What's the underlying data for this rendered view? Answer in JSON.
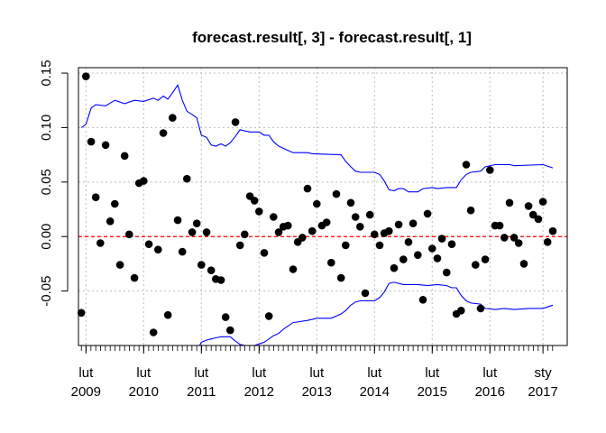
{
  "chart_data": {
    "type": "scatter",
    "title": "forecast.result[, 3] - forecast.result[, 1]",
    "xlabel": "",
    "ylabel": "",
    "grid": true,
    "ylim": [
      -0.1,
      0.155
    ],
    "xlim": [
      2008.95,
      2017.42
    ],
    "y_ticks": [
      {
        "value": -0.05,
        "label": "-0.05"
      },
      {
        "value": 0.0,
        "label": "0.00"
      },
      {
        "value": 0.05,
        "label": "0.05"
      },
      {
        "value": 0.1,
        "label": "0.10"
      },
      {
        "value": 0.15,
        "label": "0.15"
      }
    ],
    "x_ticks": [
      {
        "value": 2009.08,
        "line1": "lut",
        "line2": "2009"
      },
      {
        "value": 2010.08,
        "line1": "lut",
        "line2": "2010"
      },
      {
        "value": 2011.08,
        "line1": "lut",
        "line2": "2011"
      },
      {
        "value": 2012.08,
        "line1": "lut",
        "line2": "2012"
      },
      {
        "value": 2013.08,
        "line1": "lut",
        "line2": "2013"
      },
      {
        "value": 2014.08,
        "line1": "lut",
        "line2": "2014"
      },
      {
        "value": 2015.08,
        "line1": "lut",
        "line2": "2015"
      },
      {
        "value": 2016.08,
        "line1": "lut",
        "line2": "2016"
      },
      {
        "value": 2017.0,
        "line1": "sty",
        "line2": "2017"
      }
    ],
    "reference_line": {
      "y": 0,
      "color": "#ff0000",
      "style": "dashed"
    },
    "colors": {
      "points": "#000000",
      "bands": "#0000ff",
      "grid": "#bebebe",
      "reference": "#ff0000"
    },
    "points": [
      [
        2009.0,
        -0.07
      ],
      [
        2009.08,
        0.147
      ],
      [
        2009.17,
        0.087
      ],
      [
        2009.25,
        0.036
      ],
      [
        2009.33,
        -0.006
      ],
      [
        2009.42,
        0.084
      ],
      [
        2009.5,
        0.014
      ],
      [
        2009.58,
        0.03
      ],
      [
        2009.67,
        -0.026
      ],
      [
        2009.75,
        0.074
      ],
      [
        2009.83,
        0.002
      ],
      [
        2009.92,
        -0.038
      ],
      [
        2010.0,
        0.049
      ],
      [
        2010.08,
        0.051
      ],
      [
        2010.17,
        -0.007
      ],
      [
        2010.25,
        -0.088
      ],
      [
        2010.33,
        -0.012
      ],
      [
        2010.42,
        0.095
      ],
      [
        2010.5,
        -0.072
      ],
      [
        2010.58,
        0.109
      ],
      [
        2010.67,
        0.015
      ],
      [
        2010.75,
        -0.014
      ],
      [
        2010.83,
        0.053
      ],
      [
        2010.92,
        0.004
      ],
      [
        2011.0,
        0.012
      ],
      [
        2011.08,
        -0.026
      ],
      [
        2011.17,
        0.004
      ],
      [
        2011.25,
        -0.031
      ],
      [
        2011.33,
        -0.039
      ],
      [
        2011.42,
        -0.04
      ],
      [
        2011.5,
        -0.074
      ],
      [
        2011.58,
        -0.086
      ],
      [
        2011.67,
        0.105
      ],
      [
        2011.75,
        -0.008
      ],
      [
        2011.83,
        0.002
      ],
      [
        2011.92,
        0.037
      ],
      [
        2012.0,
        0.033
      ],
      [
        2012.08,
        0.023
      ],
      [
        2012.17,
        -0.015
      ],
      [
        2012.25,
        -0.073
      ],
      [
        2012.33,
        0.018
      ],
      [
        2012.42,
        0.004
      ],
      [
        2012.5,
        0.009
      ],
      [
        2012.58,
        0.01
      ],
      [
        2012.67,
        -0.03
      ],
      [
        2012.75,
        -0.005
      ],
      [
        2012.83,
        -0.001
      ],
      [
        2012.92,
        0.044
      ],
      [
        2013.0,
        0.005
      ],
      [
        2013.08,
        0.03
      ],
      [
        2013.17,
        0.01
      ],
      [
        2013.25,
        0.013
      ],
      [
        2013.33,
        -0.024
      ],
      [
        2013.42,
        0.039
      ],
      [
        2013.5,
        -0.038
      ],
      [
        2013.58,
        -0.008
      ],
      [
        2013.67,
        0.031
      ],
      [
        2013.75,
        0.018
      ],
      [
        2013.83,
        0.009
      ],
      [
        2013.92,
        -0.052
      ],
      [
        2014.0,
        0.02
      ],
      [
        2014.08,
        0.002
      ],
      [
        2014.17,
        -0.008
      ],
      [
        2014.25,
        0.003
      ],
      [
        2014.33,
        0.005
      ],
      [
        2014.42,
        -0.029
      ],
      [
        2014.5,
        0.011
      ],
      [
        2014.58,
        -0.021
      ],
      [
        2014.67,
        -0.005
      ],
      [
        2014.75,
        0.012
      ],
      [
        2014.83,
        -0.017
      ],
      [
        2014.92,
        -0.058
      ],
      [
        2015.0,
        0.021
      ],
      [
        2015.08,
        -0.011
      ],
      [
        2015.17,
        -0.02
      ],
      [
        2015.25,
        -0.002
      ],
      [
        2015.33,
        -0.033
      ],
      [
        2015.42,
        -0.007
      ],
      [
        2015.5,
        -0.071
      ],
      [
        2015.58,
        -0.068
      ],
      [
        2015.67,
        0.066
      ],
      [
        2015.75,
        0.024
      ],
      [
        2015.83,
        -0.026
      ],
      [
        2015.92,
        -0.066
      ],
      [
        2016.0,
        -0.021
      ],
      [
        2016.08,
        0.061
      ],
      [
        2016.17,
        0.01
      ],
      [
        2016.25,
        0.01
      ],
      [
        2016.33,
        -0.001
      ],
      [
        2016.42,
        0.031
      ],
      [
        2016.5,
        -0.001
      ],
      [
        2016.58,
        -0.006
      ],
      [
        2016.67,
        -0.025
      ],
      [
        2016.75,
        0.028
      ],
      [
        2016.83,
        0.02
      ],
      [
        2016.92,
        0.016
      ],
      [
        2017.0,
        0.032
      ],
      [
        2017.08,
        -0.005
      ],
      [
        2017.17,
        0.005
      ]
    ],
    "upper_band": [
      [
        2009.0,
        0.1
      ],
      [
        2009.08,
        0.103
      ],
      [
        2009.17,
        0.118
      ],
      [
        2009.25,
        0.121
      ],
      [
        2009.42,
        0.12
      ],
      [
        2009.58,
        0.125
      ],
      [
        2009.75,
        0.122
      ],
      [
        2009.92,
        0.125
      ],
      [
        2010.08,
        0.124
      ],
      [
        2010.25,
        0.127
      ],
      [
        2010.33,
        0.125
      ],
      [
        2010.42,
        0.129
      ],
      [
        2010.5,
        0.126
      ],
      [
        2010.58,
        0.132
      ],
      [
        2010.67,
        0.139
      ],
      [
        2010.75,
        0.125
      ],
      [
        2010.83,
        0.115
      ],
      [
        2010.92,
        0.112
      ],
      [
        2011.0,
        0.109
      ],
      [
        2011.08,
        0.093
      ],
      [
        2011.17,
        0.091
      ],
      [
        2011.25,
        0.084
      ],
      [
        2011.33,
        0.083
      ],
      [
        2011.42,
        0.085
      ],
      [
        2011.5,
        0.083
      ],
      [
        2011.58,
        0.086
      ],
      [
        2011.67,
        0.092
      ],
      [
        2011.75,
        0.098
      ],
      [
        2011.83,
        0.097
      ],
      [
        2011.92,
        0.096
      ],
      [
        2012.08,
        0.096
      ],
      [
        2012.17,
        0.093
      ],
      [
        2012.25,
        0.093
      ],
      [
        2012.33,
        0.087
      ],
      [
        2012.42,
        0.083
      ],
      [
        2012.5,
        0.081
      ],
      [
        2012.58,
        0.079
      ],
      [
        2012.67,
        0.077
      ],
      [
        2012.92,
        0.077
      ],
      [
        2013.0,
        0.076
      ],
      [
        2013.5,
        0.075
      ],
      [
        2013.58,
        0.069
      ],
      [
        2013.67,
        0.064
      ],
      [
        2013.75,
        0.06
      ],
      [
        2013.83,
        0.059
      ],
      [
        2014.08,
        0.059
      ],
      [
        2014.17,
        0.057
      ],
      [
        2014.25,
        0.051
      ],
      [
        2014.33,
        0.043
      ],
      [
        2014.42,
        0.042
      ],
      [
        2014.5,
        0.044
      ],
      [
        2014.58,
        0.044
      ],
      [
        2014.67,
        0.041
      ],
      [
        2014.83,
        0.041
      ],
      [
        2014.92,
        0.044
      ],
      [
        2015.08,
        0.045
      ],
      [
        2015.17,
        0.044
      ],
      [
        2015.33,
        0.045
      ],
      [
        2015.5,
        0.045
      ],
      [
        2015.58,
        0.052
      ],
      [
        2015.67,
        0.057
      ],
      [
        2015.75,
        0.059
      ],
      [
        2015.92,
        0.06
      ],
      [
        2016.0,
        0.064
      ],
      [
        2016.17,
        0.066
      ],
      [
        2016.42,
        0.066
      ],
      [
        2016.5,
        0.065
      ],
      [
        2017.0,
        0.066
      ],
      [
        2017.17,
        0.063
      ]
    ],
    "lower_band": [
      [
        2010.92,
        -0.13
      ],
      [
        2011.0,
        -0.105
      ],
      [
        2011.08,
        -0.097
      ],
      [
        2011.17,
        -0.095
      ],
      [
        2011.25,
        -0.094
      ],
      [
        2011.33,
        -0.093
      ],
      [
        2011.42,
        -0.092
      ],
      [
        2011.5,
        -0.092
      ],
      [
        2011.58,
        -0.092
      ],
      [
        2011.67,
        -0.096
      ],
      [
        2011.75,
        -0.099
      ],
      [
        2011.83,
        -0.1
      ],
      [
        2012.0,
        -0.1
      ],
      [
        2012.17,
        -0.097
      ],
      [
        2012.33,
        -0.091
      ],
      [
        2012.42,
        -0.089
      ],
      [
        2012.5,
        -0.085
      ],
      [
        2012.67,
        -0.079
      ],
      [
        2012.92,
        -0.077
      ],
      [
        2013.08,
        -0.075
      ],
      [
        2013.33,
        -0.075
      ],
      [
        2013.5,
        -0.071
      ],
      [
        2013.58,
        -0.068
      ],
      [
        2013.67,
        -0.063
      ],
      [
        2013.75,
        -0.06
      ],
      [
        2013.83,
        -0.059
      ],
      [
        2014.08,
        -0.059
      ],
      [
        2014.17,
        -0.056
      ],
      [
        2014.25,
        -0.051
      ],
      [
        2014.33,
        -0.043
      ],
      [
        2014.42,
        -0.042
      ],
      [
        2014.58,
        -0.044
      ],
      [
        2014.67,
        -0.044
      ],
      [
        2014.83,
        -0.044
      ],
      [
        2015.0,
        -0.045
      ],
      [
        2015.17,
        -0.044
      ],
      [
        2015.33,
        -0.045
      ],
      [
        2015.42,
        -0.047
      ],
      [
        2015.5,
        -0.047
      ],
      [
        2015.58,
        -0.054
      ],
      [
        2015.67,
        -0.059
      ],
      [
        2015.75,
        -0.061
      ],
      [
        2015.92,
        -0.062
      ],
      [
        2016.0,
        -0.066
      ],
      [
        2016.17,
        -0.067
      ],
      [
        2016.33,
        -0.066
      ],
      [
        2016.5,
        -0.067
      ],
      [
        2016.75,
        -0.066
      ],
      [
        2017.0,
        -0.066
      ],
      [
        2017.17,
        -0.063
      ]
    ]
  }
}
